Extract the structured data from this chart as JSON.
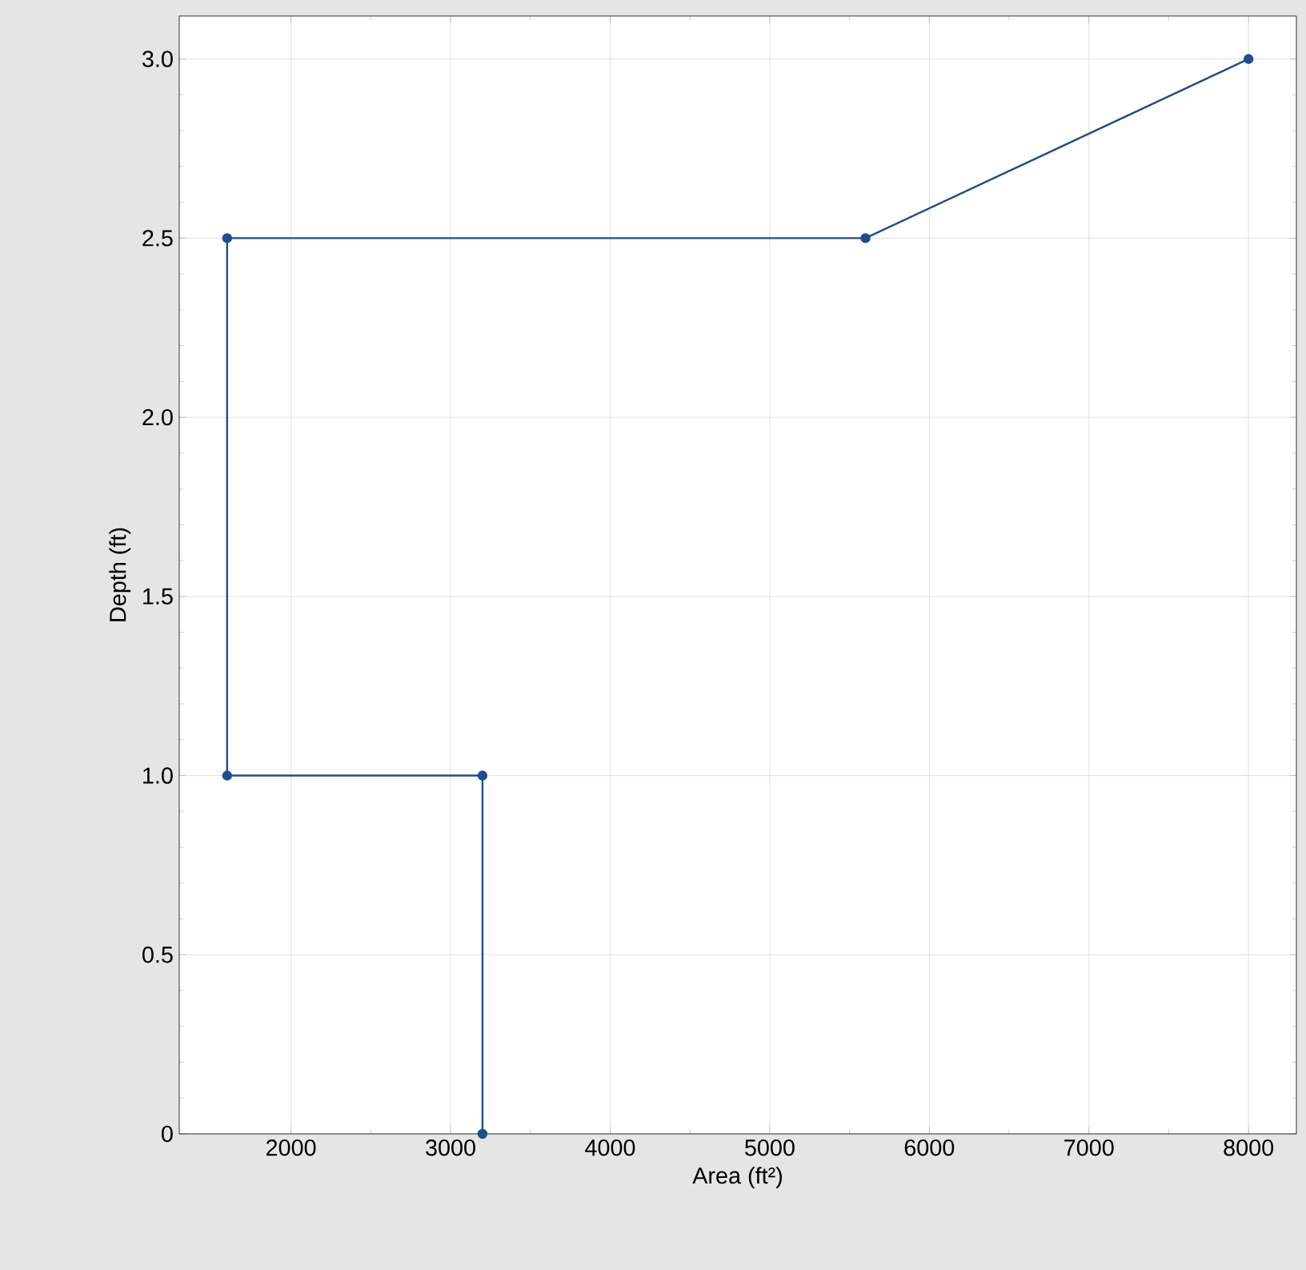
{
  "chart_data": {
    "type": "line",
    "xlabel": "Area (ft²)",
    "ylabel": "Depth (ft)",
    "x": [
      3200,
      3200,
      1600,
      1600,
      5600,
      8000
    ],
    "series": [
      {
        "color": "#1f4e8c",
        "values": [
          0,
          1,
          1,
          2.5,
          2.5,
          3
        ]
      }
    ],
    "xlim": [
      1300,
      8300
    ],
    "ylim": [
      0,
      3.12
    ],
    "xticks": [
      2000,
      3000,
      4000,
      5000,
      6000,
      7000,
      8000
    ],
    "yticks": [
      0,
      {
        "value": 0.5,
        "label": "0.5"
      },
      {
        "value": 1,
        "label": "1.0"
      },
      {
        "value": 1.5,
        "label": "1.5"
      },
      {
        "value": 2,
        "label": "2.0"
      },
      {
        "value": 2.5,
        "label": "2.5"
      },
      {
        "value": 3,
        "label": "3.0"
      }
    ],
    "grid": true,
    "marker": "circle",
    "line_style": "solid"
  }
}
